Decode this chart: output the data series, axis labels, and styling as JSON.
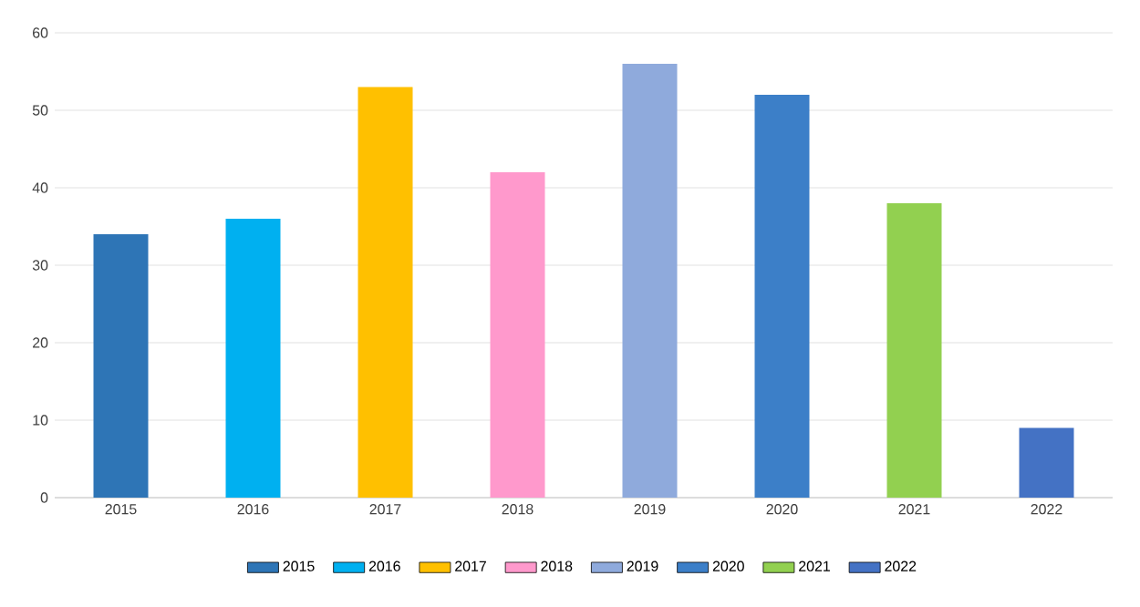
{
  "chart_data": {
    "type": "bar",
    "categories": [
      "2015",
      "2016",
      "2017",
      "2018",
      "2019",
      "2020",
      "2021",
      "2022"
    ],
    "series": [
      {
        "name": "2015",
        "color": "#2e75b6",
        "values": [
          34,
          null,
          null,
          null,
          null,
          null,
          null,
          null
        ]
      },
      {
        "name": "2016",
        "color": "#00b0f0",
        "values": [
          null,
          36,
          null,
          null,
          null,
          null,
          null,
          null
        ]
      },
      {
        "name": "2017",
        "color": "#ffc000",
        "values": [
          null,
          null,
          53,
          null,
          null,
          null,
          null,
          null
        ]
      },
      {
        "name": "2018",
        "color": "#ff99cc",
        "values": [
          null,
          null,
          null,
          42,
          null,
          null,
          null,
          null
        ]
      },
      {
        "name": "2019",
        "color": "#8faadc",
        "values": [
          null,
          null,
          null,
          null,
          56,
          null,
          null,
          null
        ]
      },
      {
        "name": "2020",
        "color": "#3c7fc8",
        "values": [
          null,
          null,
          null,
          null,
          null,
          52,
          null,
          null
        ]
      },
      {
        "name": "2021",
        "color": "#92d050",
        "values": [
          null,
          null,
          null,
          null,
          null,
          null,
          38,
          null
        ]
      },
      {
        "name": "2022",
        "color": "#4472c4",
        "values": [
          null,
          null,
          null,
          null,
          null,
          null,
          null,
          9
        ]
      }
    ],
    "ylim": [
      0,
      60
    ],
    "yticks": [
      0,
      10,
      20,
      30,
      40,
      50,
      60
    ],
    "grid": "y",
    "legend": "bottom"
  }
}
